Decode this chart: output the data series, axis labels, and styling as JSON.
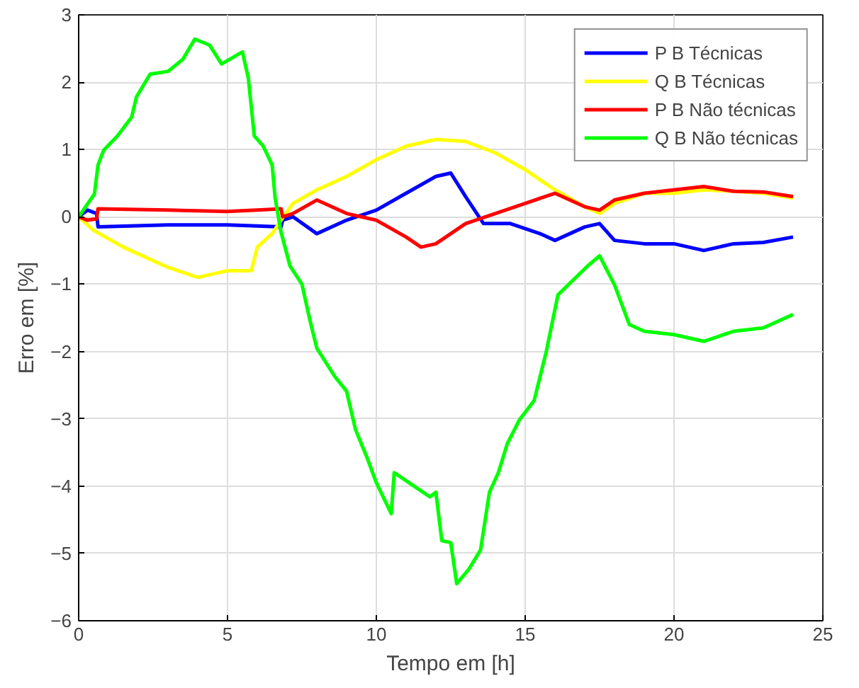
{
  "chart_data": {
    "type": "line",
    "xlabel": "Tempo em [h]",
    "ylabel": "Erro em [%]",
    "xlim": [
      0,
      25
    ],
    "xticks": [
      0,
      5,
      10,
      15,
      20,
      25
    ],
    "ylim": [
      -6,
      3
    ],
    "yticks": [
      -6,
      -5,
      -4,
      -3,
      -2,
      -1,
      0,
      1,
      2,
      3
    ],
    "grid": true,
    "legend": "top right",
    "line_style": "solid",
    "marker": "none",
    "series": [
      {
        "name": "P B Técnicas",
        "color": "#0000ff",
        "x": [
          0,
          0.3,
          0.6,
          0.65,
          3,
          5,
          6.8,
          6.85,
          7.2,
          8,
          9,
          10,
          11,
          12,
          12.5,
          13,
          13.6,
          14.5,
          15.5,
          16,
          17,
          17.5,
          18,
          19,
          20,
          21,
          22,
          23,
          24
        ],
        "values": [
          0,
          0.1,
          0.05,
          -0.15,
          -0.12,
          -0.12,
          -0.15,
          -0.05,
          0,
          -0.25,
          -0.05,
          0.1,
          0.35,
          0.6,
          0.65,
          0.3,
          -0.1,
          -0.1,
          -0.25,
          -0.35,
          -0.15,
          -0.1,
          -0.35,
          -0.4,
          -0.4,
          -0.5,
          -0.4,
          -0.38,
          -0.3
        ]
      },
      {
        "name": "Q B Técnicas",
        "color": "#ffff00",
        "x": [
          0,
          0.5,
          1.5,
          3,
          4,
          5,
          5.8,
          6,
          6.5,
          6.8,
          7.2,
          8,
          9,
          10,
          11,
          12,
          13,
          14,
          15,
          16,
          17,
          17.5,
          18,
          19,
          20,
          21,
          22,
          23,
          24
        ],
        "values": [
          0,
          -0.2,
          -0.45,
          -0.75,
          -0.9,
          -0.8,
          -0.8,
          -0.45,
          -0.25,
          -0.05,
          0.2,
          0.4,
          0.6,
          0.85,
          1.05,
          1.15,
          1.12,
          0.95,
          0.7,
          0.4,
          0.15,
          0.05,
          0.2,
          0.35,
          0.35,
          0.4,
          0.38,
          0.35,
          0.28
        ]
      },
      {
        "name": "P B Não técnicas",
        "color": "#ff0000",
        "x": [
          0,
          0.3,
          0.6,
          0.65,
          3,
          5,
          6,
          6.8,
          6.85,
          7.2,
          8,
          9,
          10,
          11,
          11.5,
          12,
          13,
          14,
          15,
          16,
          17,
          17.5,
          18,
          19,
          20,
          21,
          22,
          23,
          24
        ],
        "values": [
          0,
          -0.05,
          -0.03,
          0.12,
          0.1,
          0.08,
          0.1,
          0.12,
          0,
          0.05,
          0.25,
          0.05,
          -0.05,
          -0.3,
          -0.45,
          -0.4,
          -0.1,
          0.05,
          0.2,
          0.35,
          0.15,
          0.1,
          0.25,
          0.35,
          0.4,
          0.45,
          0.38,
          0.37,
          0.3
        ]
      },
      {
        "name": "Q B Não técnicas",
        "color": "#00ff00",
        "x": [
          0,
          0.53,
          0.65,
          0.84,
          1.3,
          1.78,
          1.94,
          2.4,
          3.0,
          3.5,
          3.9,
          4.4,
          4.8,
          5.5,
          5.7,
          5.9,
          6.2,
          6.5,
          6.6,
          6.8,
          7.1,
          7.5,
          7.76,
          8.0,
          8.6,
          9.0,
          9.3,
          9.7,
          10.0,
          10.5,
          10.6,
          11.2,
          11.8,
          12.0,
          12.2,
          12.5,
          12.7,
          13.1,
          13.5,
          13.8,
          14.1,
          14.4,
          14.8,
          15.3,
          15.7,
          16.1,
          17.1,
          17.5,
          18.0,
          18.5,
          19,
          20,
          21,
          22,
          23,
          24
        ],
        "values": [
          0,
          0.34,
          0.77,
          0.99,
          1.2,
          1.48,
          1.78,
          2.12,
          2.16,
          2.34,
          2.64,
          2.55,
          2.27,
          2.45,
          2.06,
          1.2,
          1.05,
          0.77,
          0.28,
          -0.23,
          -0.73,
          -1.0,
          -1.52,
          -1.95,
          -2.37,
          -2.59,
          -3.16,
          -3.59,
          -3.95,
          -4.41,
          -3.8,
          -3.98,
          -4.16,
          -4.09,
          -4.81,
          -4.84,
          -5.45,
          -5.24,
          -4.95,
          -4.09,
          -3.8,
          -3.37,
          -3.02,
          -2.73,
          -2.02,
          -1.16,
          -0.73,
          -0.58,
          -1.01,
          -1.6,
          -1.7,
          -1.75,
          -1.85,
          -1.7,
          -1.65,
          -1.45
        ]
      }
    ]
  }
}
